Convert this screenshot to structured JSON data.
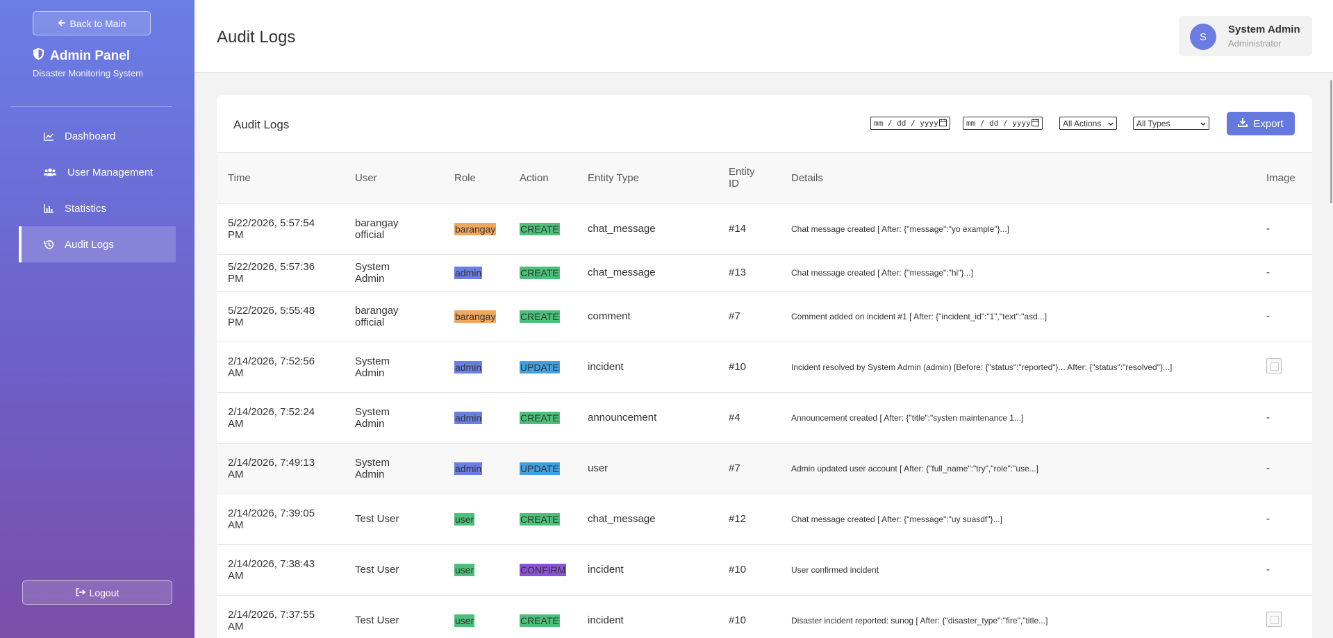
{
  "sidebar": {
    "back_label": "Back to Main",
    "brand_title": "Admin Panel",
    "brand_subtitle": "Disaster Monitoring System",
    "items": [
      {
        "label": "Dashboard",
        "icon": "chart-line-icon"
      },
      {
        "label": "User Management",
        "icon": "users-icon"
      },
      {
        "label": "Statistics",
        "icon": "bar-chart-icon"
      },
      {
        "label": "Audit Logs",
        "icon": "history-icon",
        "active": true
      }
    ],
    "logout_label": "Logout"
  },
  "header": {
    "title": "Audit Logs",
    "user": {
      "initial": "S",
      "name": "System Admin",
      "role": "Administrator"
    }
  },
  "card": {
    "title": "Audit Logs",
    "filters": {
      "date_from_placeholder": "mm / dd / yyyy",
      "date_to_placeholder": "mm / dd / yyyy",
      "action_selected": "All Actions",
      "type_selected": "All Types"
    },
    "export_label": "Export"
  },
  "table": {
    "columns": [
      "Time",
      "User",
      "Role",
      "Action",
      "Entity Type",
      "Entity ID",
      "Details",
      "Image"
    ],
    "rows": [
      {
        "time": "5/22/2026, 5:57:54 PM",
        "user": "barangay official",
        "role": "barangay",
        "action": "CREATE",
        "entity_type": "chat_message",
        "entity_id": "#14",
        "details": "Chat message created [ After: {\"message\":\"yo example\"}...]",
        "image": "-"
      },
      {
        "time": "5/22/2026, 5:57:36 PM",
        "user": "System Admin",
        "role": "admin",
        "action": "CREATE",
        "entity_type": "chat_message",
        "entity_id": "#13",
        "details": "Chat message created [ After: {\"message\":\"hi\"}...]",
        "image": "-"
      },
      {
        "time": "5/22/2026, 5:55:48 PM",
        "user": "barangay official",
        "role": "barangay",
        "action": "CREATE",
        "entity_type": "comment",
        "entity_id": "#7",
        "details": "Comment added on incident #1 [ After: {\"incident_id\":\"1\",\"text\":\"asd...]",
        "image": "-"
      },
      {
        "time": "2/14/2026, 7:52:56 AM",
        "user": "System Admin",
        "role": "admin",
        "action": "UPDATE",
        "entity_type": "incident",
        "entity_id": "#10",
        "details": "Incident resolved by System Admin (admin) [Before: {\"status\":\"reported\"}... After: {\"status\":\"resolved\"}...]",
        "image": "thumbnail"
      },
      {
        "time": "2/14/2026, 7:52:24 AM",
        "user": "System Admin",
        "role": "admin",
        "action": "CREATE",
        "entity_type": "announcement",
        "entity_id": "#4",
        "details": "Announcement created [ After: {\"title\":\"systen maintenance 1...]",
        "image": "-"
      },
      {
        "time": "2/14/2026, 7:49:13 AM",
        "user": "System Admin",
        "role": "admin",
        "action": "UPDATE",
        "entity_type": "user",
        "entity_id": "#7",
        "details": "Admin updated user account [ After: {\"full_name\":\"try\",\"role\":\"use...]",
        "image": "-"
      },
      {
        "time": "2/14/2026, 7:39:05 AM",
        "user": "Test User",
        "role": "user",
        "action": "CREATE",
        "entity_type": "chat_message",
        "entity_id": "#12",
        "details": "Chat message created [ After: {\"message\":\"uy suasdf\"}...]",
        "image": "-"
      },
      {
        "time": "2/14/2026, 7:38:43 AM",
        "user": "Test User",
        "role": "user",
        "action": "CONFIRM",
        "entity_type": "incident",
        "entity_id": "#10",
        "details": "User confirmed incident",
        "image": "-"
      },
      {
        "time": "2/14/2026, 7:37:55 AM",
        "user": "Test User",
        "role": "user",
        "action": "CREATE",
        "entity_type": "incident",
        "entity_id": "#10",
        "details": "Disaster incident reported: sunog [ After: {\"disaster_type\":\"fire\",\"title...]",
        "image": "thumbnail"
      }
    ]
  },
  "colors": {
    "accent": "#6478e0",
    "role_barangay": "#f0a860",
    "role_admin": "#6a7fe2",
    "role_user": "#4cc07a",
    "action_create": "#4cc07a",
    "action_update": "#41a0e0",
    "action_confirm": "#8a52d8"
  }
}
